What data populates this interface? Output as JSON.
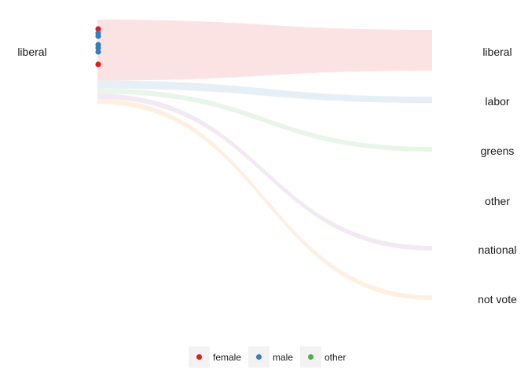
{
  "chart_data": {
    "type": "alluvial",
    "source": {
      "label": "liberal"
    },
    "targets": [
      "liberal",
      "labor",
      "greens",
      "other",
      "national",
      "not vote"
    ],
    "flows": [
      {
        "to": "liberal",
        "value": 50,
        "color": "#e41a1c"
      },
      {
        "to": "labor",
        "value": 8,
        "color": "#377eb8"
      },
      {
        "to": "greens",
        "value": 5,
        "color": "#4daf4a"
      },
      {
        "to": "other",
        "value": 0,
        "color": "#ffffff"
      },
      {
        "to": "national",
        "value": 5,
        "color": "#984ea3"
      },
      {
        "to": "not vote",
        "value": 5,
        "color": "#ff7f00"
      }
    ],
    "flow_opacity": 0.12,
    "points": [
      {
        "gender": "female"
      },
      {
        "gender": "male"
      },
      {
        "gender": "male"
      },
      {
        "gender": "male"
      },
      {
        "gender": "male"
      },
      {
        "gender": "male"
      },
      {
        "gender": "female"
      }
    ],
    "legend": {
      "position": "bottom",
      "items": [
        {
          "label": "female",
          "color": "#e41a1c"
        },
        {
          "label": "male",
          "color": "#377eb8"
        },
        {
          "label": "other",
          "color": "#4daf4a"
        }
      ]
    }
  }
}
